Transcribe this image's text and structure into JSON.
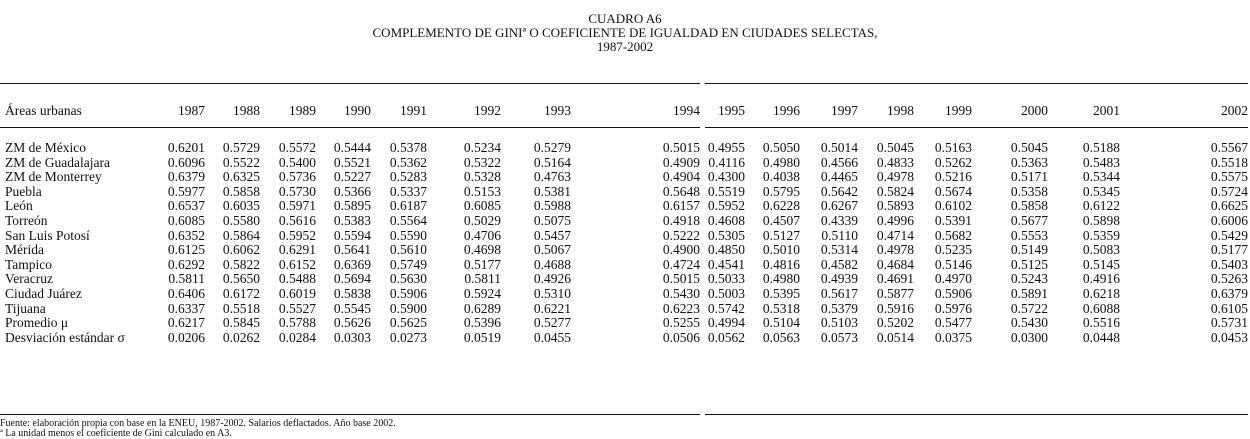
{
  "title": {
    "line1": "CUADRO A6",
    "line2": "COMPLEMENTO DE GINIª O COEFICIENTE DE IGUALDAD EN CIUDADES SELECTAS,",
    "line3": "1987-2002"
  },
  "table": {
    "row_header": "Áreas urbanas",
    "years": [
      "1987",
      "1988",
      "1989",
      "1990",
      "1991",
      "1992",
      "1993",
      "1994",
      "1995",
      "1996",
      "1997",
      "1998",
      "1999",
      "2000",
      "2001",
      "2002"
    ],
    "rows": [
      {
        "label": "ZM de México",
        "values": [
          "0.6201",
          "0.5729",
          "0.5572",
          "0.5444",
          "0.5378",
          "0.5234",
          "0.5279",
          "0.5015",
          "0.4955",
          "0.5050",
          "0.5014",
          "0.5045",
          "0.5163",
          "0.5045",
          "0.5188",
          "0.5567"
        ]
      },
      {
        "label": "ZM de Guadalajara",
        "values": [
          "0.6096",
          "0.5522",
          "0.5400",
          "0.5521",
          "0.5362",
          "0.5322",
          "0.5164",
          "0.4909",
          "0.4116",
          "0.4980",
          "0.4566",
          "0.4833",
          "0.5262",
          "0.5363",
          "0.5483",
          "0.5518"
        ]
      },
      {
        "label": "ZM de Monterrey",
        "values": [
          "0.6379",
          "0.6325",
          "0.5736",
          "0.5227",
          "0.5283",
          "0.5328",
          "0.4763",
          "0.4904",
          "0.4300",
          "0.4038",
          "0.4465",
          "0.4978",
          "0.5216",
          "0.5171",
          "0.5344",
          "0.5575"
        ]
      },
      {
        "label": "Puebla",
        "values": [
          "0.5977",
          "0.5858",
          "0.5730",
          "0.5366",
          "0.5337",
          "0.5153",
          "0.5381",
          "0.5648",
          "0.5519",
          "0.5795",
          "0.5642",
          "0.5824",
          "0.5674",
          "0.5358",
          "0.5345",
          "0.5724"
        ]
      },
      {
        "label": "León",
        "values": [
          "0.6537",
          "0.6035",
          "0.5971",
          "0.5895",
          "0.6187",
          "0.6085",
          "0.5988",
          "0.6157",
          "0.5952",
          "0.6228",
          "0.6267",
          "0.5893",
          "0.6102",
          "0.5858",
          "0.6122",
          "0.6625"
        ]
      },
      {
        "label": "Torreón",
        "values": [
          "0.6085",
          "0.5580",
          "0.5616",
          "0.5383",
          "0.5564",
          "0.5029",
          "0.5075",
          "0.4918",
          "0.4608",
          "0.4507",
          "0.4339",
          "0.4996",
          "0.5391",
          "0.5677",
          "0.5898",
          "0.6006"
        ]
      },
      {
        "label": "San Luis Potosí",
        "values": [
          "0.6352",
          "0.5864",
          "0.5952",
          "0.5594",
          "0.5590",
          "0.4706",
          "0.5457",
          "0.5222",
          "0.5305",
          "0.5127",
          "0.5110",
          "0.4714",
          "0.5682",
          "0.5553",
          "0.5359",
          "0.5429"
        ]
      },
      {
        "label": "Mérida",
        "values": [
          "0.6125",
          "0.6062",
          "0.6291",
          "0.5641",
          "0.5610",
          "0.4698",
          "0.5067",
          "0.4900",
          "0.4850",
          "0.5010",
          "0.5314",
          "0.4978",
          "0.5235",
          "0.5149",
          "0.5083",
          "0.5177"
        ]
      },
      {
        "label": "Tampico",
        "values": [
          "0.6292",
          "0.5822",
          "0.6152",
          "0.6369",
          "0.5749",
          "0.5177",
          "0.4688",
          "0.4724",
          "0.4541",
          "0.4816",
          "0.4582",
          "0.4684",
          "0.5146",
          "0.5125",
          "0.5145",
          "0.5403"
        ]
      },
      {
        "label": "Veracruz",
        "values": [
          "0.5811",
          "0.5650",
          "0.5488",
          "0.5694",
          "0.5630",
          "0.5811",
          "0.4926",
          "0.5015",
          "0.5033",
          "0.4980",
          "0.4939",
          "0.4691",
          "0.4970",
          "0.5243",
          "0.4916",
          "0.5263"
        ]
      },
      {
        "label": "Ciudad Juárez",
        "values": [
          "0.6406",
          "0.6172",
          "0.6019",
          "0.5838",
          "0.5906",
          "0.5924",
          "0.5310",
          "0.5430",
          "0.5003",
          "0.5395",
          "0.5617",
          "0.5877",
          "0.5906",
          "0.5891",
          "0.6218",
          "0.6379"
        ]
      },
      {
        "label": "Tijuana",
        "values": [
          "0.6337",
          "0.5518",
          "0.5527",
          "0.5545",
          "0.5900",
          "0.6289",
          "0.6221",
          "0.6223",
          "0.5742",
          "0.5318",
          "0.5379",
          "0.5916",
          "0.5976",
          "0.5722",
          "0.6088",
          "0.6105"
        ]
      },
      {
        "label": "Promedio μ",
        "values": [
          "0.6217",
          "0.5845",
          "0.5788",
          "0.5626",
          "0.5625",
          "0.5396",
          "0.5277",
          "0.5255",
          "0.4994",
          "0.5104",
          "0.5103",
          "0.5202",
          "0.5477",
          "0.5430",
          "0.5516",
          "0.5731"
        ]
      },
      {
        "label": "Desviación estándar σ",
        "values": [
          "0.0206",
          "0.0262",
          "0.0284",
          "0.0303",
          "0.0273",
          "0.0519",
          "0.0455",
          "0.0506",
          "0.0562",
          "0.0563",
          "0.0573",
          "0.0514",
          "0.0375",
          "0.0300",
          "0.0448",
          "0.0453"
        ]
      }
    ]
  },
  "footnotes": {
    "source": "Fuente: elaboración propia con base en la ENEU, 1987-2002. Salarios deflactados. Año base 2002.",
    "note_a": "ª La unidad menos el coeficiente de Gini calculado en A3."
  }
}
